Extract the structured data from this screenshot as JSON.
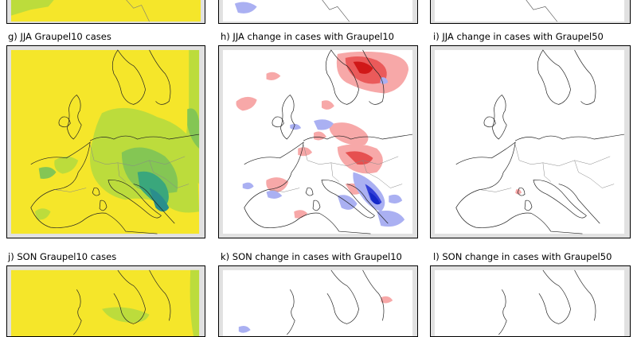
{
  "panel_labels": {
    "g": "g) JJA Graupel10 cases",
    "h": "h) JJA change in cases with Graupel10",
    "i": "i) JJA change in cases with Graupel50",
    "j": "j) SON Graupel10 cases",
    "k": "k) SON change in cases with Graupel10",
    "l": "l) SON change in cases with Graupel50"
  },
  "colors": {
    "frame_bg": "#e1e1e1",
    "yellow": "#f5e62a",
    "green_light": "#bcdc3c",
    "green_mid": "#84c654",
    "green_dark": "#3aa77c",
    "teal": "#2a8e8c",
    "red_light": "#f7a8a8",
    "red_dark": "#e0141c",
    "blue_light": "#aab0f2",
    "blue_dark": "#1428c8"
  }
}
